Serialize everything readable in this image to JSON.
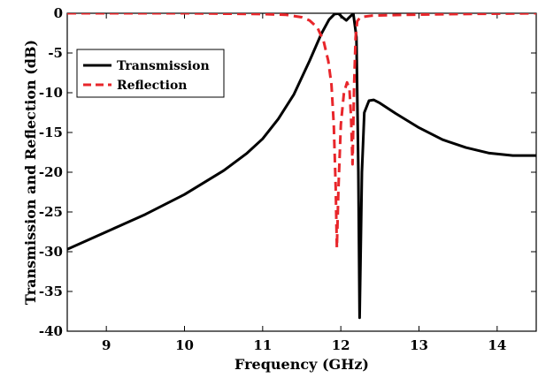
{
  "chart_data": {
    "type": "line",
    "xlabel": "Frequency (GHz)",
    "ylabel": "Transmission and Reflection (dB)",
    "xlim": [
      8.5,
      14.5
    ],
    "ylim": [
      -40,
      0
    ],
    "xticks": [
      9,
      10,
      11,
      12,
      13,
      14
    ],
    "yticks": [
      0,
      -5,
      -10,
      -15,
      -20,
      -25,
      -30,
      -35,
      -40
    ],
    "x_tick_labels": [
      "9",
      "10",
      "11",
      "12",
      "13",
      "14"
    ],
    "y_tick_labels": [
      "0",
      "-5",
      "-10",
      "-15",
      "-20",
      "-25",
      "-30",
      "-35",
      "-40"
    ],
    "grid": false,
    "legend_position": "upper-left",
    "series": [
      {
        "name": "Transmission",
        "color": "#000000",
        "style": "solid",
        "x": [
          8.5,
          9.0,
          9.5,
          10.0,
          10.5,
          10.8,
          11.0,
          11.2,
          11.4,
          11.6,
          11.75,
          11.85,
          11.92,
          11.97,
          12.02,
          12.07,
          12.12,
          12.16,
          12.2,
          12.225,
          12.24,
          12.27,
          12.3,
          12.36,
          12.42,
          12.5,
          12.7,
          13.0,
          13.3,
          13.6,
          13.9,
          14.2,
          14.5
        ],
        "y": [
          -29.7,
          -27.5,
          -25.3,
          -22.8,
          -19.8,
          -17.6,
          -15.8,
          -13.3,
          -10.2,
          -6.0,
          -2.6,
          -0.8,
          -0.1,
          -0.05,
          -0.5,
          -0.9,
          -0.4,
          -0.05,
          -3.0,
          -20.0,
          -38.3,
          -20.0,
          -12.5,
          -11.0,
          -10.9,
          -11.3,
          -12.6,
          -14.4,
          -15.9,
          -16.9,
          -17.6,
          -17.9,
          -17.9
        ]
      },
      {
        "name": "Reflection",
        "color": "#e8262b",
        "style": "dashed",
        "x": [
          8.5,
          9.0,
          10.0,
          11.0,
          11.3,
          11.5,
          11.6,
          11.7,
          11.78,
          11.84,
          11.88,
          11.91,
          11.935,
          11.95,
          11.97,
          12.0,
          12.04,
          12.08,
          12.11,
          12.13,
          12.15,
          12.17,
          12.19,
          12.21,
          12.25,
          12.4,
          12.8,
          13.5,
          14.5
        ],
        "y": [
          0,
          0,
          0,
          -0.1,
          -0.2,
          -0.5,
          -0.9,
          -1.8,
          -3.5,
          -6.0,
          -9.0,
          -14.0,
          -22.0,
          -29.5,
          -22.0,
          -14.0,
          -10.0,
          -8.7,
          -9.5,
          -13.0,
          -19.0,
          -9.0,
          -3.0,
          -1.0,
          -0.5,
          -0.3,
          -0.2,
          -0.1,
          0
        ]
      }
    ]
  }
}
